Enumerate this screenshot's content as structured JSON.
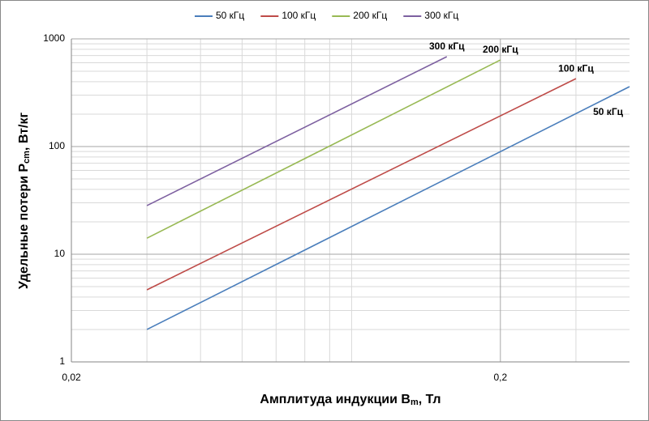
{
  "chart_data": {
    "type": "line",
    "log_x": true,
    "log_y": true,
    "grid": true,
    "legend": "top",
    "xlabel": {
      "text": "Амплитуда индукции B",
      "sub": "m",
      "rest": ", Тл"
    },
    "ylabel": {
      "text": "Удельные потери P",
      "sub": "cm",
      "rest": ", Вт/кг"
    },
    "xlim": [
      0.02,
      0.4
    ],
    "xticks": [
      {
        "value": 0.02,
        "label": "0,02"
      },
      {
        "value": 0.2,
        "label": "0,2"
      }
    ],
    "xminor": [
      0.03,
      0.04,
      0.05,
      0.06,
      0.07,
      0.08,
      0.09,
      0.3
    ],
    "ylim": [
      1,
      1000
    ],
    "yticks": [
      1,
      10,
      100,
      1000
    ],
    "yminor": [
      2,
      3,
      4,
      5,
      6,
      7,
      8,
      9,
      20,
      30,
      40,
      50,
      60,
      70,
      80,
      90,
      200,
      300,
      400,
      500,
      600,
      700,
      800,
      900
    ],
    "series": [
      {
        "name": "50 кГц",
        "color": "#4a7ebb",
        "x": [
          0.03,
          0.4
        ],
        "values": [
          2,
          360
        ]
      },
      {
        "name": "100 кГц",
        "color": "#be4b48",
        "x": [
          0.03,
          0.3
        ],
        "values": [
          4.67,
          427
        ]
      },
      {
        "name": "200 кГц",
        "color": "#98b954",
        "x": [
          0.03,
          0.2
        ],
        "values": [
          14.1,
          637
        ]
      },
      {
        "name": "300 кГц",
        "color": "#7d60a0",
        "x": [
          0.03,
          0.15
        ],
        "values": [
          28.3,
          683
        ]
      }
    ]
  }
}
